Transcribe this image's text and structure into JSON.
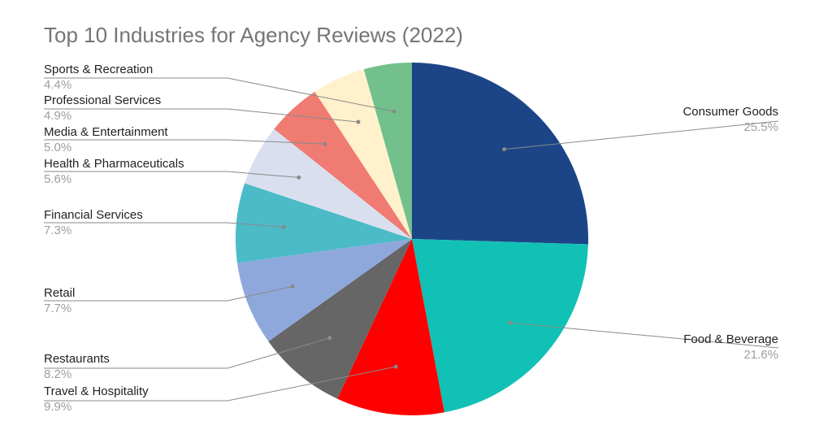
{
  "chart_data": {
    "type": "pie",
    "title": "Top 10 Industries for Agency Reviews (2022)",
    "slices": [
      {
        "label": "Consumer Goods",
        "pct_label": "25.5%",
        "value": 25.5,
        "color": "#1c4587"
      },
      {
        "label": "Food & Beverage",
        "pct_label": "21.6%",
        "value": 21.6,
        "color": "#12c1b5"
      },
      {
        "label": "Travel & Hospitality",
        "pct_label": "9.9%",
        "value": 9.9,
        "color": "#ff0000"
      },
      {
        "label": "Restaurants",
        "pct_label": "8.2%",
        "value": 8.2,
        "color": "#666666"
      },
      {
        "label": "Retail",
        "pct_label": "7.7%",
        "value": 7.7,
        "color": "#8fa8dc"
      },
      {
        "label": "Financial Services",
        "pct_label": "7.3%",
        "value": 7.3,
        "color": "#4cbbc8"
      },
      {
        "label": "Health & Pharmaceuticals",
        "pct_label": "5.6%",
        "value": 5.6,
        "color": "#dadff0"
      },
      {
        "label": "Media & Entertainment",
        "pct_label": "5.0%",
        "value": 5.0,
        "color": "#f07b72"
      },
      {
        "label": "Professional Services",
        "pct_label": "4.9%",
        "value": 4.9,
        "color": "#fff1cc"
      },
      {
        "label": "Sports & Recreation",
        "pct_label": "4.4%",
        "value": 4.4,
        "color": "#72c08c"
      }
    ]
  }
}
